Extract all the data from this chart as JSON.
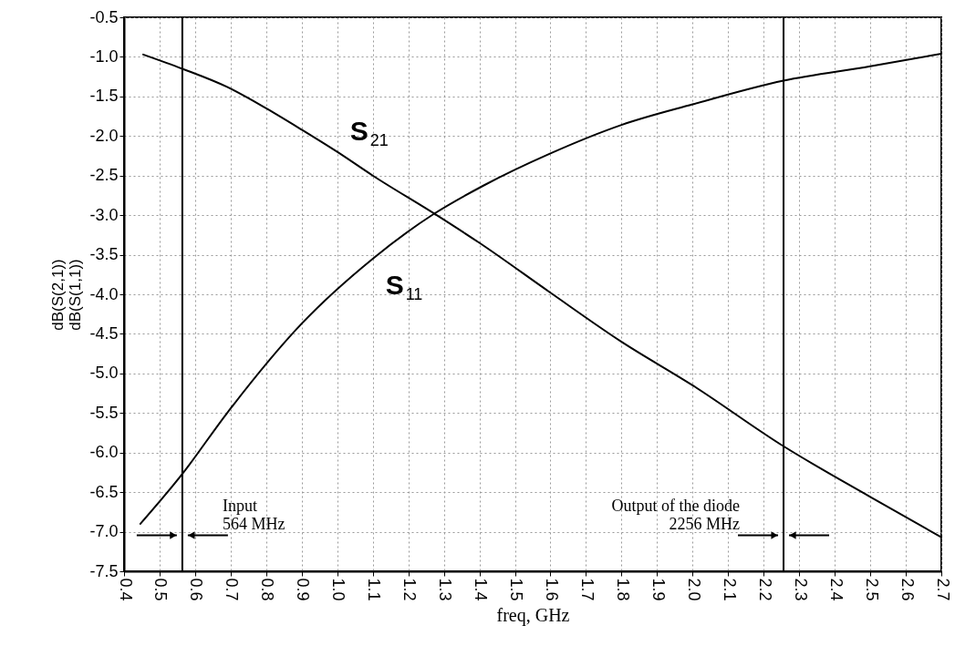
{
  "chart_data": {
    "type": "line",
    "xlabel": "freq, GHz",
    "ylabel": "dB(S(2,1))\ndB(S(1,1))",
    "series": [
      {
        "name": "S$_{21}$",
        "color": "#000000",
        "x": [
          0.454,
          0.564,
          0.69,
          0.8,
          0.9,
          1.0,
          1.1,
          1.28,
          1.4,
          1.6,
          1.8,
          2.0,
          2.256,
          2.5,
          2.7
        ],
        "values": [
          -0.97,
          -1.15,
          -1.38,
          -1.65,
          -1.92,
          -2.2,
          -2.5,
          -3.0,
          -3.35,
          -3.98,
          -4.6,
          -5.15,
          -5.92,
          -6.56,
          -7.07
        ]
      },
      {
        "name": "S$_{11}$",
        "color": "#000000",
        "x": [
          0.446,
          0.564,
          0.69,
          0.9,
          1.1,
          1.27,
          1.41,
          1.6,
          1.8,
          2.0,
          2.256,
          2.5,
          2.7
        ],
        "values": [
          -6.9,
          -6.27,
          -5.5,
          -4.37,
          -3.55,
          -2.99,
          -2.63,
          -2.22,
          -1.86,
          -1.6,
          -1.3,
          -1.12,
          -0.96
        ]
      }
    ],
    "xlim": [
      0.4,
      2.7
    ],
    "xticks": [
      0.4,
      0.5,
      0.6,
      0.7,
      0.8,
      0.9,
      {
        "value": 1.0,
        "label": "1.0"
      },
      1.1,
      1.2,
      1.3,
      1.4,
      1.5,
      1.6,
      1.7,
      1.8,
      1.9,
      {
        "value": 2.0,
        "label": "2.0"
      },
      2.1,
      2.2,
      2.3,
      2.4,
      2.5,
      2.6,
      2.7
    ],
    "ylim": [
      -7.5,
      -0.5
    ],
    "yticks": [
      -0.5,
      {
        "value": -1.0,
        "label": "-1.0"
      },
      -1.5,
      {
        "value": -2.0,
        "label": "-2.0"
      },
      -2.5,
      {
        "value": -3.0,
        "label": "-3.0"
      },
      -3.5,
      {
        "value": -4.0,
        "label": "-4.0"
      },
      -4.5,
      {
        "value": -5.0,
        "label": "-5.0"
      },
      -5.5,
      {
        "value": -6.0,
        "label": "-6.0"
      },
      -6.5,
      {
        "value": -7.0,
        "label": "-7.0"
      },
      -7.5
    ],
    "ref_lines": [
      {
        "axis": "x",
        "value": 0.564,
        "color": "#000000",
        "label": "Input\n564 MHz"
      },
      {
        "axis": "x",
        "value": 2.256,
        "color": "#000000",
        "label": "Output of the diode\n2256 MHz"
      }
    ],
    "grid": true,
    "line_style": "solid"
  }
}
